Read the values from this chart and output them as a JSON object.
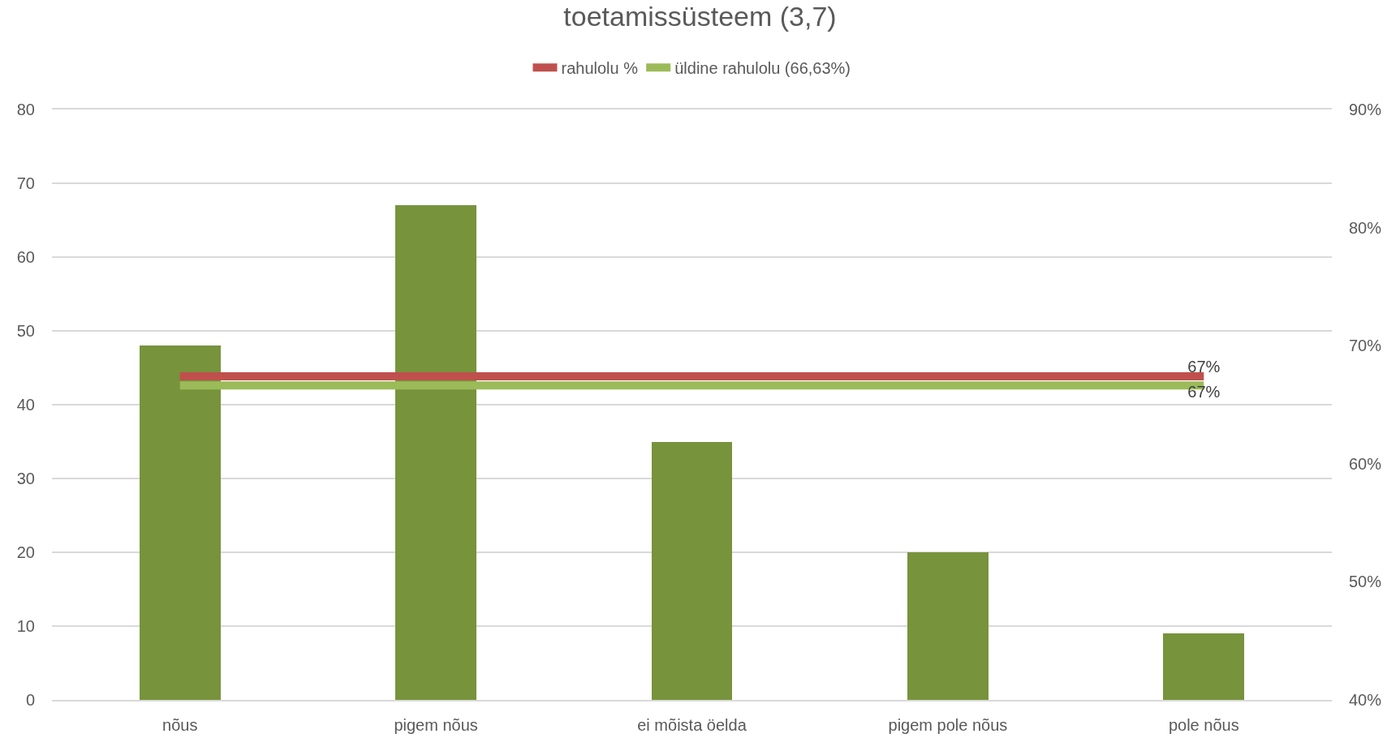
{
  "chart_data": {
    "type": "bar",
    "title": "toetamissüsteem (3,7)",
    "categories": [
      "nõus",
      "pigem nõus",
      "ei mõista öelda",
      "pigem pole nõus",
      "pole nõus"
    ],
    "series": [
      {
        "color": "#77933c",
        "values": [
          48,
          67,
          35,
          20,
          9
        ]
      },
      {
        "type": "line",
        "axis": "y2",
        "name": "rahulolu %",
        "color": "#c0504d",
        "values": [
          67.4,
          67.4,
          67.4,
          67.4,
          67.4
        ],
        "value_labels": [
          null,
          null,
          null,
          null,
          "67%"
        ]
      },
      {
        "type": "line",
        "axis": "y2",
        "name": "üldine rahulolu (66,63%)",
        "color": "#9bbb59",
        "values": [
          66.63,
          66.63,
          66.63,
          66.63,
          66.63
        ],
        "value_labels": [
          null,
          null,
          null,
          null,
          "67%"
        ]
      }
    ],
    "ylim": [
      0,
      80
    ],
    "yticks": [
      0,
      10,
      20,
      30,
      40,
      50,
      60,
      70,
      80
    ],
    "y2lim": [
      40,
      90
    ],
    "y2ticks": [
      {
        "value": 40,
        "label": "40%"
      },
      {
        "value": 50,
        "label": "50%"
      },
      {
        "value": 60,
        "label": "60%"
      },
      {
        "value": 70,
        "label": "70%"
      },
      {
        "value": 80,
        "label": "80%"
      },
      {
        "value": 90,
        "label": "90%"
      }
    ],
    "grid": "y",
    "legend": "top",
    "marker": "none",
    "line_style": "solid"
  }
}
